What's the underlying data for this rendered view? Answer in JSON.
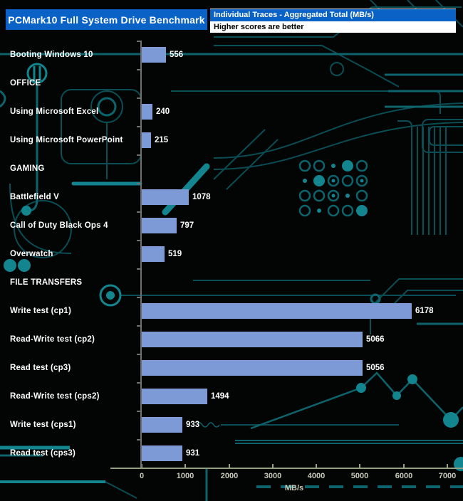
{
  "header": {
    "title": "PCMark10 Full System Drive Benchmark",
    "legend_line1": "Individual Traces - Aggregated Total (MB/s)",
    "legend_line2": "Higher scores are better"
  },
  "colors": {
    "title_bg": "#0a62c6",
    "bar_fill": "#7d99d6",
    "y_axis": "#6f6f6f",
    "x_axis_line": "#93a184",
    "x_axis_text": "#c9ccba",
    "value_text": "#ffffff",
    "circuit_dark": "#0a4d54",
    "circuit_mid": "#0d646c",
    "circuit_bright": "#12858f"
  },
  "chart_data": {
    "type": "bar",
    "orientation": "horizontal",
    "title": "PCMark10 Full System Drive Benchmark",
    "subtitle": "Individual Traces - Aggregated Total (MB/s)",
    "note": "Higher scores are better",
    "xlabel": "MB/s",
    "xlim": [
      0,
      7000
    ],
    "x_ticks": [
      0,
      1000,
      2000,
      3000,
      4000,
      5000,
      6000,
      7000
    ],
    "grid": false,
    "rows": [
      {
        "kind": "bar",
        "label": "Booting Windows 10",
        "value": 556
      },
      {
        "kind": "category",
        "label": "OFFICE"
      },
      {
        "kind": "bar",
        "label": "Using Microsoft Excel",
        "value": 240
      },
      {
        "kind": "bar",
        "label": "Using Microsoft PowerPoint",
        "value": 215
      },
      {
        "kind": "category",
        "label": "GAMING"
      },
      {
        "kind": "bar",
        "label": "Battlefield V",
        "value": 1078
      },
      {
        "kind": "bar",
        "label": "Call of Duty Black Ops 4",
        "value": 797
      },
      {
        "kind": "bar",
        "label": "Overwatch",
        "value": 519
      },
      {
        "kind": "category",
        "label": "FILE TRANSFERS"
      },
      {
        "kind": "bar",
        "label": "Write test (cp1)",
        "value": 6178
      },
      {
        "kind": "bar",
        "label": "Read-Write test (cp2)",
        "value": 5066
      },
      {
        "kind": "bar",
        "label": "Read test (cp3)",
        "value": 5056
      },
      {
        "kind": "bar",
        "label": "Read-Write test (cps2)",
        "value": 1494
      },
      {
        "kind": "bar",
        "label": "Write test (cps1)",
        "value": 933
      },
      {
        "kind": "bar",
        "label": "Read test (cps3)",
        "value": 931
      }
    ]
  }
}
